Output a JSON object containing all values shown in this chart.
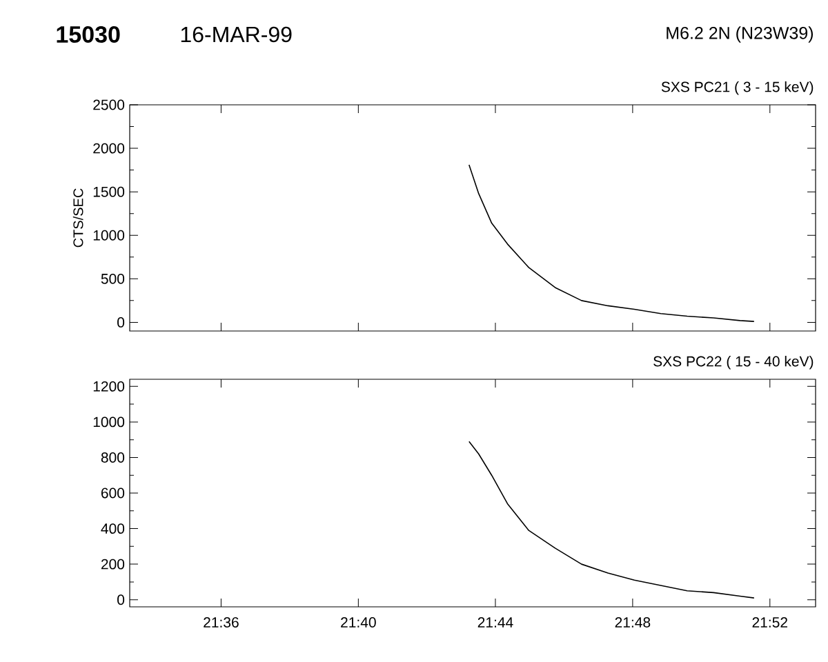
{
  "chart_data": [
    {
      "type": "line",
      "title": "SXS PC21 ( 3 - 15 keV)",
      "ylabel": "CTS/SEC",
      "annotations": [
        "15030",
        "16-MAR-99",
        "M6.2   2N (N23W39)"
      ],
      "x": [
        21.7205,
        21.72517,
        21.7315,
        21.73917,
        21.7495,
        21.76233,
        21.77517,
        21.788,
        21.80083,
        21.81367,
        21.8265,
        21.83933,
        21.85217,
        21.859
      ],
      "series": [
        {
          "color": "#000000",
          "values": [
            1810,
            1480,
            1140,
            900,
            630,
            400,
            250,
            190,
            150,
            100,
            70,
            50,
            20,
            10
          ]
        }
      ],
      "xlim": [
        21.5556,
        21.8889
      ],
      "ylim": [
        -100,
        2500
      ],
      "xticks": [
        {
          "value": 21.6,
          "label": null
        },
        {
          "value": 21.6667,
          "label": null
        },
        {
          "value": 21.7333,
          "label": null
        },
        {
          "value": 21.8,
          "label": null
        },
        {
          "value": 21.8667,
          "label": null
        }
      ],
      "yticks": [
        0,
        500,
        1000,
        1500,
        2000,
        2500
      ],
      "tick_labels": "y"
    },
    {
      "type": "line",
      "title": "SXS PC22 ( 15 - 40 keV)",
      "x": [
        21.7205,
        21.72517,
        21.7315,
        21.73917,
        21.7495,
        21.76233,
        21.77517,
        21.788,
        21.80083,
        21.81367,
        21.8265,
        21.83933,
        21.85217,
        21.859
      ],
      "series": [
        {
          "color": "#000000",
          "values": [
            890,
            820,
            700,
            540,
            390,
            290,
            200,
            150,
            110,
            80,
            50,
            40,
            20,
            10
          ]
        }
      ],
      "xlim": [
        21.5556,
        21.8889
      ],
      "ylim": [
        -40,
        1240
      ],
      "xticks": [
        {
          "value": 21.6,
          "label": "21:36"
        },
        {
          "value": 21.6667,
          "label": "21:40"
        },
        {
          "value": 21.7333,
          "label": "21:44"
        },
        {
          "value": 21.8,
          "label": "21:48"
        },
        {
          "value": 21.8667,
          "label": "21:52"
        }
      ],
      "yticks": [
        0,
        200,
        400,
        600,
        800,
        1000,
        1200
      ]
    }
  ]
}
